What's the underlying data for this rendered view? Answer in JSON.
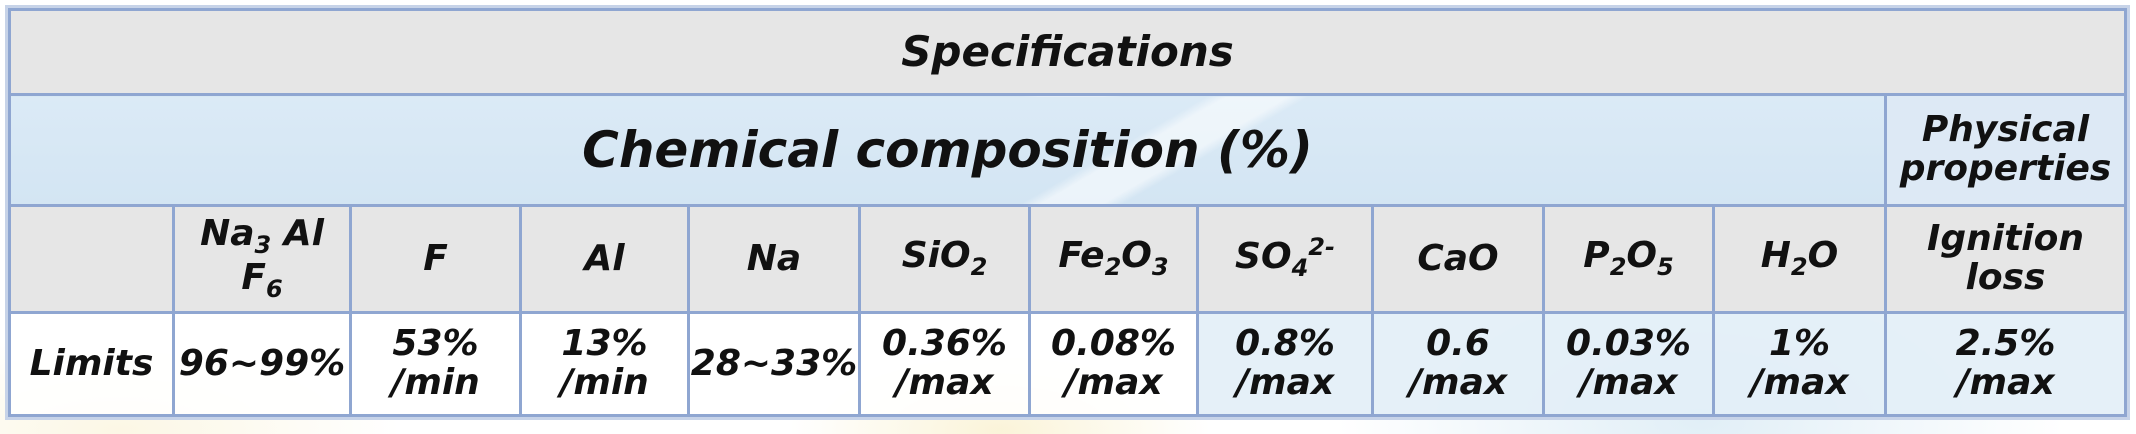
{
  "title": "Specifications",
  "groups": {
    "chemical": "Chemical composition (%)",
    "physical": "Physical properties"
  },
  "headers": [
    {
      "base": "",
      "parts": []
    },
    {
      "key": "Na3AlF6",
      "parts": [
        {
          "t": "Na"
        },
        {
          "sub": "3"
        },
        {
          "t": " Al F"
        },
        {
          "sub": "6"
        }
      ]
    },
    {
      "key": "F",
      "parts": [
        {
          "t": "F"
        }
      ]
    },
    {
      "key": "Al",
      "parts": [
        {
          "t": "Al"
        }
      ]
    },
    {
      "key": "Na",
      "parts": [
        {
          "t": "Na"
        }
      ]
    },
    {
      "key": "SiO2",
      "parts": [
        {
          "t": "SiO"
        },
        {
          "sub": "2"
        }
      ]
    },
    {
      "key": "Fe2O3",
      "parts": [
        {
          "t": "Fe"
        },
        {
          "sub": "2"
        },
        {
          "t": "O"
        },
        {
          "sub": "3"
        }
      ]
    },
    {
      "key": "SO42-",
      "parts": [
        {
          "t": "SO"
        },
        {
          "sub": "4"
        },
        {
          "sup": "2-"
        }
      ]
    },
    {
      "key": "CaO",
      "parts": [
        {
          "t": "CaO"
        }
      ]
    },
    {
      "key": "P2O5",
      "parts": [
        {
          "t": "P"
        },
        {
          "sub": "2"
        },
        {
          "t": "O"
        },
        {
          "sub": "5"
        }
      ]
    },
    {
      "key": "H2O",
      "parts": [
        {
          "t": "H"
        },
        {
          "sub": "2"
        },
        {
          "t": "O"
        }
      ]
    },
    {
      "key": "Ignition loss",
      "parts": [
        {
          "t": "Ignition loss"
        }
      ]
    }
  ],
  "row_label": "Limits",
  "limits": [
    [
      "96~99%"
    ],
    [
      "53%",
      "/min"
    ],
    [
      "13%",
      "/min"
    ],
    [
      "28~33%"
    ],
    [
      "0.36%",
      "/max"
    ],
    [
      "0.08%",
      "/max"
    ],
    [
      "0.8%",
      "/max"
    ],
    [
      "0.6",
      "/max"
    ],
    [
      "0.03%",
      "/max"
    ],
    [
      "1%",
      "/max"
    ],
    [
      "2.5%",
      "/max"
    ]
  ]
}
